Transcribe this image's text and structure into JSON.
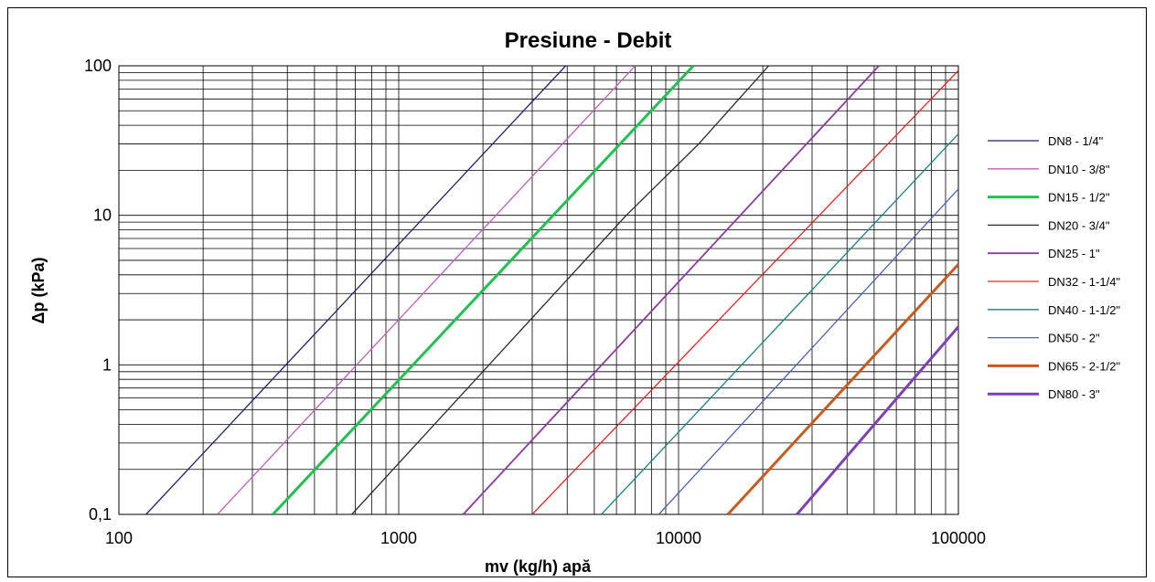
{
  "chart_data": {
    "type": "line",
    "title": "Presiune - Debit",
    "xlabel": "mv (kg/h) apă",
    "ylabel": "Δp (kPa)",
    "x_scale": "log",
    "y_scale": "log",
    "xlim": [
      100,
      100000
    ],
    "ylim": [
      0.1,
      100
    ],
    "x_tick_labels": [
      "100",
      "1000",
      "10000",
      "100000"
    ],
    "y_tick_labels": [
      "0,1",
      "1",
      "10",
      "100"
    ],
    "grid": true,
    "legend_position": "right",
    "series": [
      {
        "name": "DN8 - 1/4\"",
        "color": "#1f1f6e",
        "width": 1.3,
        "points": [
          [
            125,
            0.1
          ],
          [
            3950,
            100
          ]
        ]
      },
      {
        "name": "DN10 - 3/8\"",
        "color": "#c060c0",
        "width": 1.3,
        "points": [
          [
            225,
            0.1
          ],
          [
            7000,
            100
          ]
        ]
      },
      {
        "name": "DN15 - 1/2\"",
        "color": "#22c050",
        "width": 3,
        "points": [
          [
            355,
            0.1
          ],
          [
            11300,
            100
          ]
        ]
      },
      {
        "name": "DN20 - 3/4\"",
        "color": "#2a2a2a",
        "width": 1.3,
        "points": [
          [
            680,
            0.1
          ],
          [
            6500,
            10
          ],
          [
            11800,
            30
          ],
          [
            21000,
            100
          ]
        ]
      },
      {
        "name": "DN25 - 1\"",
        "color": "#8e3a9e",
        "width": 1.8,
        "points": [
          [
            1700,
            0.1
          ],
          [
            52000,
            100
          ]
        ]
      },
      {
        "name": "DN32 - 1-1/4\"",
        "color": "#ee2020",
        "width": 1.3,
        "points": [
          [
            3000,
            0.1
          ],
          [
            100000,
            93
          ]
        ]
      },
      {
        "name": "DN40 - 1-1/2\"",
        "color": "#1a8282",
        "width": 1.3,
        "points": [
          [
            5300,
            0.1
          ],
          [
            100000,
            35
          ]
        ]
      },
      {
        "name": "DN50 - 2\"",
        "color": "#4a62b8",
        "width": 1.3,
        "points": [
          [
            8500,
            0.1
          ],
          [
            100000,
            15
          ]
        ]
      },
      {
        "name": "DN65 - 2-1/2\"",
        "color": "#c85a1e",
        "width": 3,
        "points": [
          [
            15000,
            0.1
          ],
          [
            100000,
            4.7
          ]
        ]
      },
      {
        "name": "DN80 - 3\"",
        "color": "#7f3fb5",
        "width": 3,
        "points": [
          [
            26500,
            0.1
          ],
          [
            100000,
            1.8
          ]
        ]
      }
    ]
  }
}
